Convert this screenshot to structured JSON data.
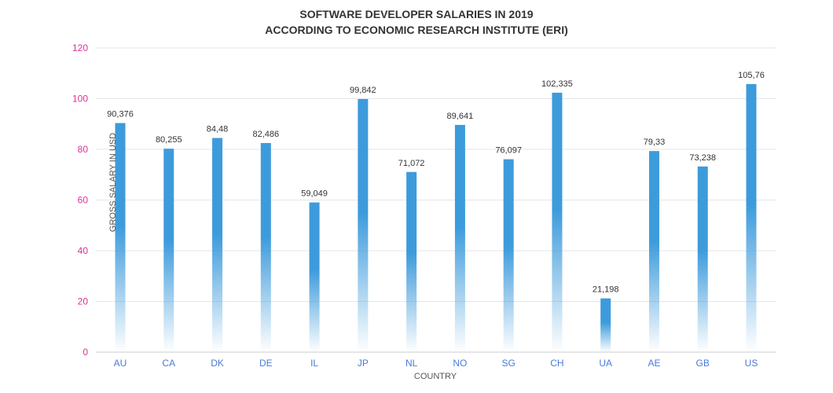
{
  "chart_data": {
    "type": "bar",
    "title_line1": "SOFTWARE DEVELOPER SALARIES IN 2019",
    "title_line2": "ACCORDING TO ECONOMIC RESEARCH INSTITUTE (ERI)",
    "xlabel": "COUNTRY",
    "ylabel": "GROSS SALARY IN USD",
    "ylim": [
      0,
      120
    ],
    "yticks": [
      0,
      20,
      40,
      60,
      80,
      100,
      120
    ],
    "grid": true,
    "categories": [
      "AU",
      "CA",
      "DK",
      "DE",
      "IL",
      "JP",
      "NL",
      "NO",
      "SG",
      "CH",
      "UA",
      "AE",
      "GB",
      "US"
    ],
    "values": [
      90.376,
      80.255,
      84.48,
      82.486,
      59.049,
      99.842,
      71.072,
      89.641,
      76.097,
      102.335,
      21.198,
      79.33,
      73.238,
      105.76
    ],
    "data_labels": [
      "90,376",
      "80,255",
      "84,48",
      "82,486",
      "59,049",
      "99,842",
      "71,072",
      "89,641",
      "76,097",
      "102,335",
      "21,198",
      "79,33",
      "73,238",
      "105,76"
    ],
    "colors": {
      "bar": "#3d9bdc",
      "ytick": "#e0309a",
      "xtick": "#4a7bd8",
      "grid": "#e6e6e6"
    }
  }
}
